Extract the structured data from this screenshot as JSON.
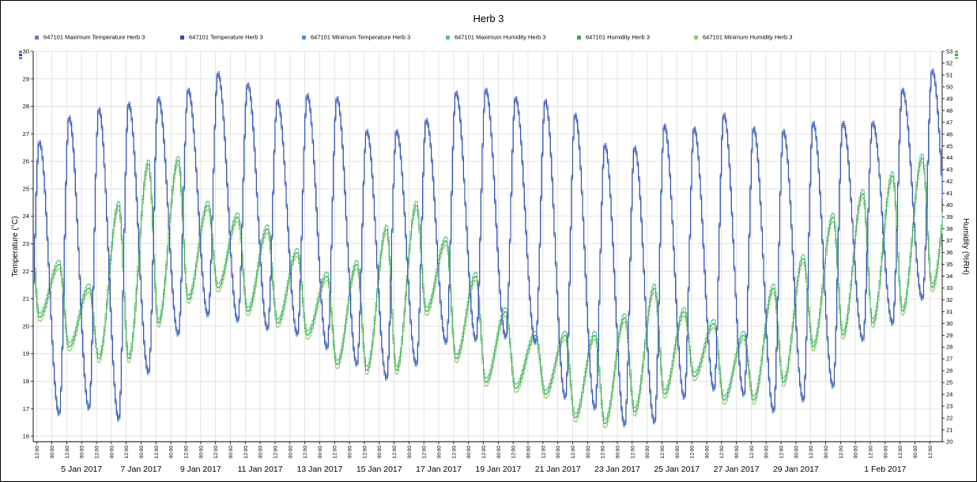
{
  "chart_data": {
    "type": "line",
    "title": "Herb 3",
    "y_left": {
      "label": "Temperature (°C)",
      "range": [
        15.8,
        30
      ],
      "ticks": [
        16,
        17,
        18,
        19,
        20,
        21,
        22,
        23,
        24,
        25,
        26,
        27,
        28,
        29,
        30
      ]
    },
    "y_right": {
      "label": "Humidity (%RH)",
      "range": [
        20,
        53
      ],
      "ticks": [
        20,
        21,
        22,
        23,
        24,
        25,
        26,
        27,
        28,
        29,
        30,
        31,
        32,
        33,
        34,
        35,
        36,
        37,
        38,
        39,
        40,
        41,
        42,
        43,
        44,
        45,
        46,
        47,
        48,
        49,
        50,
        51,
        52,
        53
      ]
    },
    "x_range": [
      "2017-01-03 09:00",
      "2017-02-02 22:00"
    ],
    "x_date_labels": [
      "5 Jan 2017",
      "7 Jan 2017",
      "9 Jan 2017",
      "11 Jan 2017",
      "13 Jan 2017",
      "15 Jan 2017",
      "17 Jan 2017",
      "19 Jan 2017",
      "21 Jan 2017",
      "23 Jan 2017",
      "25 Jan 2017",
      "27 Jan 2017",
      "29 Jan 2017",
      "1 Feb 2017"
    ],
    "x_hour_labels": [
      "12:00",
      "00:00"
    ],
    "grid": true,
    "legend_position": "top",
    "series": [
      {
        "name": "647101  Maximum Temperature Herb 3",
        "color": "#7b6fd0",
        "axis": "left"
      },
      {
        "name": "647101  Temperature Herb 3",
        "color": "#2f4fa8",
        "axis": "left"
      },
      {
        "name": "647101  Minimum Temperature Herb 3",
        "color": "#4a90d9",
        "axis": "left"
      },
      {
        "name": "647101  Maximum Humidity Herb 3",
        "color": "#5cc08e",
        "axis": "right"
      },
      {
        "name": "647101  Humidity Herb 3",
        "color": "#3aa84a",
        "axis": "right"
      },
      {
        "name": "647101  Minimum Humidity Herb 3",
        "color": "#8ccc70",
        "axis": "right"
      }
    ],
    "temperature_daily": [
      {
        "date": "2017-01-03",
        "min": 18.2,
        "max": 26.7
      },
      {
        "date": "2017-01-04",
        "min": 16.8,
        "max": 27.6
      },
      {
        "date": "2017-01-05",
        "min": 17.0,
        "max": 27.9
      },
      {
        "date": "2017-01-06",
        "min": 16.6,
        "max": 28.1
      },
      {
        "date": "2017-01-07",
        "min": 18.3,
        "max": 28.3
      },
      {
        "date": "2017-01-08",
        "min": 19.7,
        "max": 28.6
      },
      {
        "date": "2017-01-09",
        "min": 20.4,
        "max": 29.2
      },
      {
        "date": "2017-01-10",
        "min": 20.2,
        "max": 28.8
      },
      {
        "date": "2017-01-11",
        "min": 19.9,
        "max": 28.2
      },
      {
        "date": "2017-01-12",
        "min": 19.7,
        "max": 28.4
      },
      {
        "date": "2017-01-13",
        "min": 19.2,
        "max": 28.3
      },
      {
        "date": "2017-01-14",
        "min": 18.6,
        "max": 27.1
      },
      {
        "date": "2017-01-15",
        "min": 18.1,
        "max": 27.1
      },
      {
        "date": "2017-01-16",
        "min": 18.6,
        "max": 27.5
      },
      {
        "date": "2017-01-17",
        "min": 19.4,
        "max": 28.5
      },
      {
        "date": "2017-01-18",
        "min": 19.5,
        "max": 28.6
      },
      {
        "date": "2017-01-19",
        "min": 19.6,
        "max": 28.3
      },
      {
        "date": "2017-01-20",
        "min": 19.4,
        "max": 28.2
      },
      {
        "date": "2017-01-21",
        "min": 17.4,
        "max": 27.7
      },
      {
        "date": "2017-01-22",
        "min": 17.0,
        "max": 26.6
      },
      {
        "date": "2017-01-23",
        "min": 16.4,
        "max": 26.5
      },
      {
        "date": "2017-01-24",
        "min": 16.5,
        "max": 27.3
      },
      {
        "date": "2017-01-25",
        "min": 17.4,
        "max": 27.2
      },
      {
        "date": "2017-01-26",
        "min": 17.7,
        "max": 27.7
      },
      {
        "date": "2017-01-27",
        "min": 17.5,
        "max": 27.2
      },
      {
        "date": "2017-01-28",
        "min": 16.9,
        "max": 27.1
      },
      {
        "date": "2017-01-29",
        "min": 17.3,
        "max": 27.4
      },
      {
        "date": "2017-01-30",
        "min": 17.8,
        "max": 27.4
      },
      {
        "date": "2017-01-31",
        "min": 19.5,
        "max": 27.4
      },
      {
        "date": "2017-02-01",
        "min": 20.1,
        "max": 28.6
      },
      {
        "date": "2017-02-02",
        "min": 21.0,
        "max": 29.3
      }
    ],
    "humidity_daily": [
      {
        "date": "2017-01-03",
        "min": 30.5,
        "max": 40.0
      },
      {
        "date": "2017-01-04",
        "min": 28.0,
        "max": 35.0
      },
      {
        "date": "2017-01-05",
        "min": 27.0,
        "max": 33.0
      },
      {
        "date": "2017-01-06",
        "min": 27.0,
        "max": 40.0
      },
      {
        "date": "2017-01-07",
        "min": 30.0,
        "max": 43.5
      },
      {
        "date": "2017-01-08",
        "min": 32.0,
        "max": 43.8
      },
      {
        "date": "2017-01-09",
        "min": 33.0,
        "max": 40.0
      },
      {
        "date": "2017-01-10",
        "min": 31.0,
        "max": 39.0
      },
      {
        "date": "2017-01-11",
        "min": 30.0,
        "max": 38.0
      },
      {
        "date": "2017-01-12",
        "min": 29.0,
        "max": 36.0
      },
      {
        "date": "2017-01-13",
        "min": 26.5,
        "max": 34.0
      },
      {
        "date": "2017-01-14",
        "min": 26.0,
        "max": 35.0
      },
      {
        "date": "2017-01-15",
        "min": 26.0,
        "max": 38.0
      },
      {
        "date": "2017-01-16",
        "min": 31.0,
        "max": 40.0
      },
      {
        "date": "2017-01-17",
        "min": 27.0,
        "max": 37.0
      },
      {
        "date": "2017-01-18",
        "min": 25.0,
        "max": 34.0
      },
      {
        "date": "2017-01-19",
        "min": 24.5,
        "max": 31.0
      },
      {
        "date": "2017-01-20",
        "min": 24.0,
        "max": 29.0
      },
      {
        "date": "2017-01-21",
        "min": 22.0,
        "max": 29.0
      },
      {
        "date": "2017-01-22",
        "min": 21.5,
        "max": 29.0
      },
      {
        "date": "2017-01-23",
        "min": 22.5,
        "max": 30.5
      },
      {
        "date": "2017-01-24",
        "min": 24.0,
        "max": 33.0
      },
      {
        "date": "2017-01-25",
        "min": 25.5,
        "max": 31.0
      },
      {
        "date": "2017-01-26",
        "min": 23.5,
        "max": 30.0
      },
      {
        "date": "2017-01-27",
        "min": 23.5,
        "max": 29.0
      },
      {
        "date": "2017-01-28",
        "min": 25.0,
        "max": 33.0
      },
      {
        "date": "2017-01-29",
        "min": 28.0,
        "max": 35.5
      },
      {
        "date": "2017-01-30",
        "min": 29.0,
        "max": 39.0
      },
      {
        "date": "2017-01-31",
        "min": 30.0,
        "max": 41.0
      },
      {
        "date": "2017-02-01",
        "min": 31.0,
        "max": 42.5
      },
      {
        "date": "2017-02-02",
        "min": 33.0,
        "max": 44.0
      }
    ]
  }
}
